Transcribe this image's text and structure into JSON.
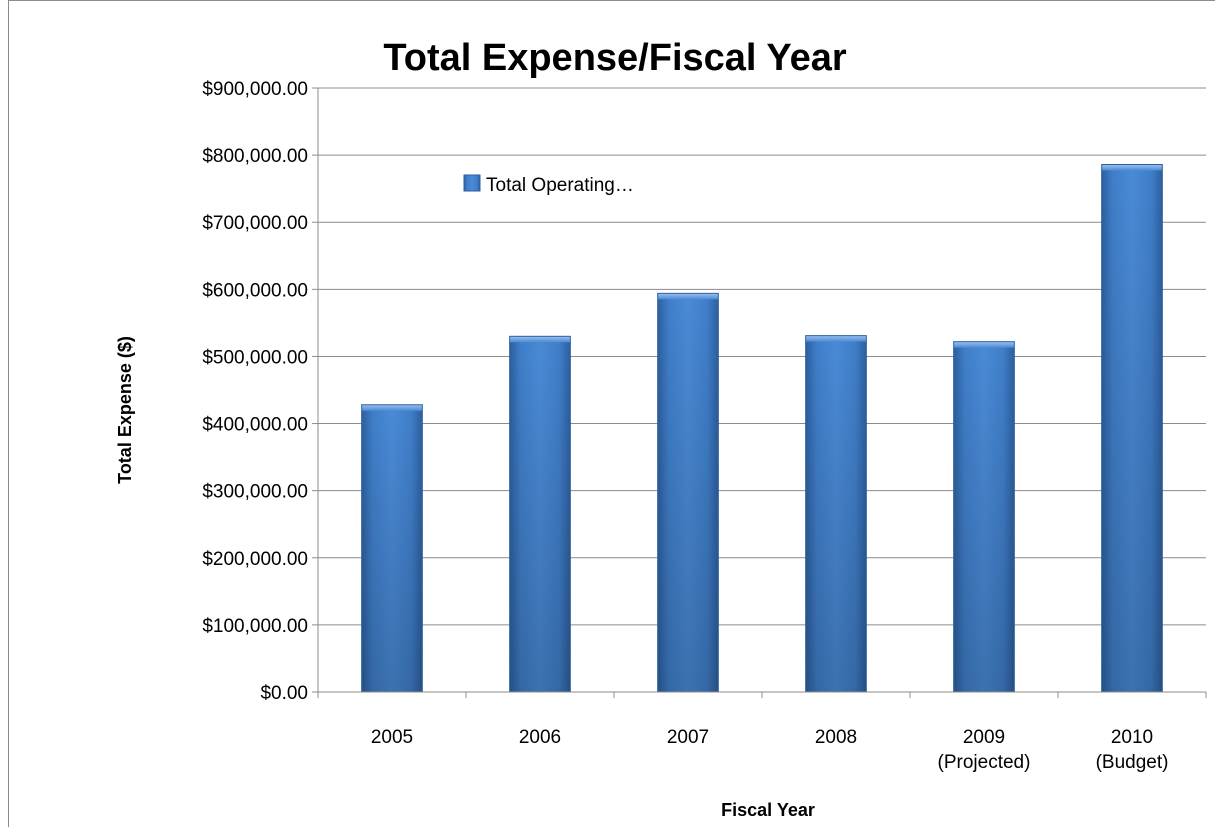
{
  "chart_data": {
    "type": "bar",
    "title": "Total Expense/Fiscal Year",
    "xlabel": "Fiscal Year",
    "ylabel": "Total Expense ($)",
    "categories": [
      [
        "2005"
      ],
      [
        "2006"
      ],
      [
        "2007"
      ],
      [
        "2008"
      ],
      [
        "2009",
        "(Projected)"
      ],
      [
        "2010",
        "(Budget)"
      ]
    ],
    "series": [
      {
        "name": "Total Operating…",
        "values": [
          428000,
          530000,
          594000,
          531000,
          522000,
          786000
        ],
        "color": "#3f7ec9"
      }
    ],
    "ylim": [
      0,
      900000
    ],
    "yticks": [
      0,
      100000,
      200000,
      300000,
      400000,
      500000,
      600000,
      700000,
      800000,
      900000
    ],
    "ytick_labels": [
      "$0.00",
      "$100,000.00",
      "$200,000.00",
      "$300,000.00",
      "$400,000.00",
      "$500,000.00",
      "$600,000.00",
      "$700,000.00",
      "$800,000.00",
      "$900,000.00"
    ],
    "grid": true,
    "legend_position": "top-left inside plot"
  }
}
